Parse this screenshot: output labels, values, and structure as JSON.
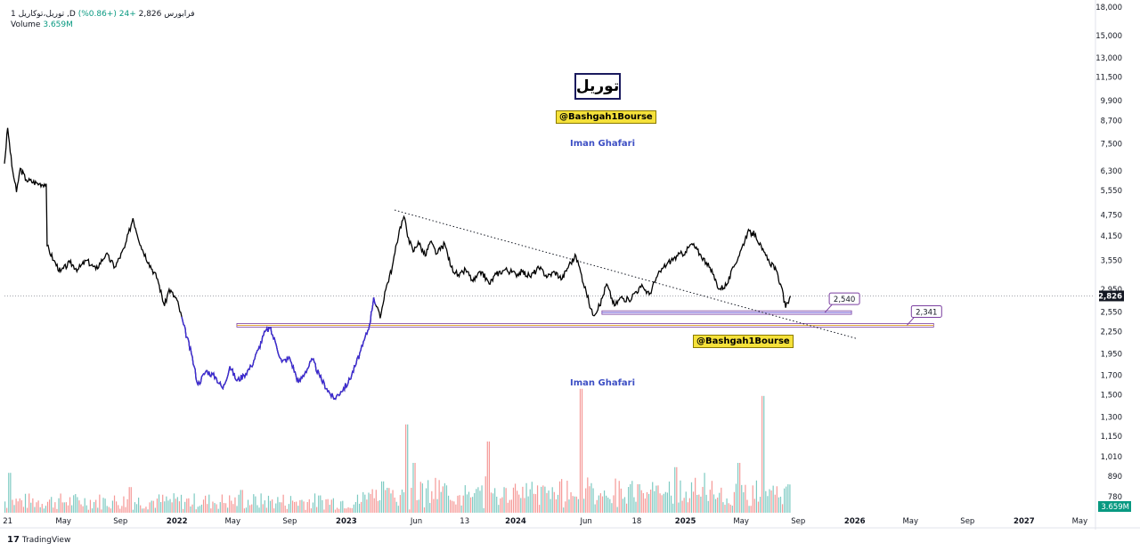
{
  "legend": {
    "symbol_line": "1 توریل،توکاریل ,D  فرابورس",
    "price": "2,826",
    "change": "+24 (+0.86%)",
    "volume_label": "Volume",
    "volume_value": "3.659M"
  },
  "overlay": {
    "title": "توریل",
    "tag1": "@Bashgah1Bourse",
    "tag2": "@Bashgah1Bourse",
    "author1": "Iman Ghafari",
    "author2": "Iman Ghafari"
  },
  "footer": {
    "brand": "TradingView"
  },
  "colors": {
    "price_line": "#000000",
    "highlight_line": "#3d2bd4",
    "vol_up": "#26a69a",
    "vol_down": "#ef5350",
    "support": "#7b3fa0",
    "grid": "#f0f3fa",
    "axis_text": "#131722"
  },
  "chart_data": {
    "type": "line",
    "title": "",
    "scale": "log",
    "ylim": [
      700,
      18000
    ],
    "y_ticks": [
      18000,
      15000,
      13000,
      11500,
      9900,
      8700,
      7500,
      6300,
      5550,
      4750,
      4150,
      3550,
      2950,
      2550,
      2250,
      1950,
      1700,
      1500,
      1300,
      1150,
      1010,
      890,
      780
    ],
    "y_tick_labels": [
      "18,000",
      "15,000",
      "13,000",
      "11,500",
      "9,900",
      "8,700",
      "7,500",
      "6,300",
      "5,550",
      "4,750",
      "4,150",
      "3,550",
      "2,950",
      "2,550",
      "2,250",
      "1,950",
      "1,700",
      "1,500",
      "1,300",
      "1,150",
      "1,010",
      "890",
      "780"
    ],
    "x_ticks": [
      "2021-01",
      "2021-05",
      "2021-09",
      "2022-01",
      "2022-05",
      "2022-09",
      "2023-01",
      "2023-06",
      "2023-09-13",
      "2024-01",
      "2024-06",
      "2024-09-18",
      "2025-01",
      "2025-05",
      "2025-09",
      "2026-01",
      "2026-05",
      "2026-09",
      "2027-01",
      "2027-05"
    ],
    "x_tick_labels": [
      "21",
      "May",
      "Sep",
      "2022",
      "May",
      "Sep",
      "2023",
      "Jun",
      "13",
      "2024",
      "Jun",
      "18",
      "2025",
      "May",
      "Sep",
      "2026",
      "May",
      "Sep",
      "2027",
      "May"
    ],
    "x_range": [
      "2020-12-25",
      "2027-05-31"
    ],
    "series": [
      {
        "points": [
          [
            "2020-12-25",
            6600
          ],
          [
            "2021-01-01",
            8300
          ],
          [
            "2021-01-10",
            6500
          ],
          [
            "2021-01-20",
            5500
          ],
          [
            "2021-01-28",
            6400
          ],
          [
            "2021-02-10",
            5950
          ],
          [
            "2021-03-10",
            5800
          ],
          [
            "2021-03-25",
            5800
          ],
          [
            "2021-03-27",
            3900
          ],
          [
            "2021-04-10",
            3550
          ],
          [
            "2021-04-25",
            3300
          ],
          [
            "2021-05-15",
            3500
          ],
          [
            "2021-06-01",
            3350
          ],
          [
            "2021-06-20",
            3550
          ],
          [
            "2021-07-10",
            3350
          ],
          [
            "2021-08-01",
            3700
          ],
          [
            "2021-08-20",
            3400
          ],
          [
            "2021-09-10",
            3850
          ],
          [
            "2021-09-28",
            4650
          ],
          [
            "2021-10-15",
            3900
          ],
          [
            "2021-11-01",
            3500
          ],
          [
            "2021-11-20",
            3150
          ],
          [
            "2021-12-05",
            2650
          ],
          [
            "2021-12-15",
            2950
          ],
          [
            "2022-01-01",
            2750
          ],
          [
            "2022-01-15",
            2350
          ],
          [
            "2022-02-01",
            1950
          ],
          [
            "2022-02-15",
            1600
          ],
          [
            "2022-03-05",
            1750
          ],
          [
            "2022-03-25",
            1680
          ],
          [
            "2022-04-10",
            1560
          ],
          [
            "2022-04-25",
            1800
          ],
          [
            "2022-05-10",
            1640
          ],
          [
            "2022-05-25",
            1700
          ],
          [
            "2022-06-10",
            1800
          ],
          [
            "2022-06-25",
            2000
          ],
          [
            "2022-07-10",
            2250
          ],
          [
            "2022-07-20",
            2300
          ],
          [
            "2022-08-01",
            2100
          ],
          [
            "2022-08-15",
            1850
          ],
          [
            "2022-09-01",
            1900
          ],
          [
            "2022-09-20",
            1620
          ],
          [
            "2022-10-05",
            1740
          ],
          [
            "2022-10-20",
            1880
          ],
          [
            "2022-11-05",
            1680
          ],
          [
            "2022-11-20",
            1560
          ],
          [
            "2022-12-05",
            1460
          ],
          [
            "2022-12-20",
            1530
          ],
          [
            "2023-01-05",
            1620
          ],
          [
            "2023-01-20",
            1800
          ],
          [
            "2023-02-05",
            2050
          ],
          [
            "2023-02-20",
            2350
          ],
          [
            "2023-03-01",
            2800
          ],
          [
            "2023-03-15",
            2450
          ],
          [
            "2023-03-25",
            2900
          ],
          [
            "2023-04-10",
            3400
          ],
          [
            "2023-04-25",
            4300
          ],
          [
            "2023-05-05",
            4700
          ],
          [
            "2023-05-15",
            4100
          ],
          [
            "2023-05-25",
            3750
          ],
          [
            "2023-06-05",
            4000
          ],
          [
            "2023-06-20",
            3650
          ],
          [
            "2023-07-01",
            4000
          ],
          [
            "2023-07-15",
            3700
          ],
          [
            "2023-08-01",
            3950
          ],
          [
            "2023-08-15",
            3400
          ],
          [
            "2023-09-01",
            3200
          ],
          [
            "2023-09-15",
            3350
          ],
          [
            "2023-10-01",
            3100
          ],
          [
            "2023-10-20",
            3300
          ],
          [
            "2023-11-05",
            3050
          ],
          [
            "2023-11-20",
            3250
          ],
          [
            "2023-12-10",
            3350
          ],
          [
            "2024-01-01",
            3250
          ],
          [
            "2024-01-15",
            3300
          ],
          [
            "2024-02-01",
            3200
          ],
          [
            "2024-02-20",
            3380
          ],
          [
            "2024-03-10",
            3200
          ],
          [
            "2024-03-25",
            3300
          ],
          [
            "2024-04-10",
            3150
          ],
          [
            "2024-04-25",
            3450
          ],
          [
            "2024-05-10",
            3650
          ],
          [
            "2024-05-20",
            3300
          ],
          [
            "2024-06-01",
            2900
          ],
          [
            "2024-06-15",
            2500
          ],
          [
            "2024-06-30",
            2650
          ],
          [
            "2024-07-15",
            3050
          ],
          [
            "2024-08-01",
            2650
          ],
          [
            "2024-08-15",
            2800
          ],
          [
            "2024-09-01",
            2750
          ],
          [
            "2024-09-15",
            2900
          ],
          [
            "2024-10-01",
            3000
          ],
          [
            "2024-10-15",
            2850
          ],
          [
            "2024-11-01",
            3200
          ],
          [
            "2024-11-15",
            3400
          ],
          [
            "2024-12-01",
            3550
          ],
          [
            "2024-12-15",
            3650
          ],
          [
            "2025-01-01",
            3750
          ],
          [
            "2025-01-15",
            3950
          ],
          [
            "2025-02-01",
            3700
          ],
          [
            "2025-02-15",
            3500
          ],
          [
            "2025-03-01",
            3250
          ],
          [
            "2025-03-15",
            2950
          ],
          [
            "2025-04-01",
            3050
          ],
          [
            "2025-04-15",
            3400
          ],
          [
            "2025-05-01",
            3800
          ],
          [
            "2025-05-15",
            4250
          ],
          [
            "2025-06-01",
            4200
          ],
          [
            "2025-06-15",
            3800
          ],
          [
            "2025-07-01",
            3500
          ],
          [
            "2025-07-10",
            3450
          ],
          [
            "2025-07-25",
            3050
          ],
          [
            "2025-08-05",
            2620
          ],
          [
            "2025-08-15",
            2826
          ]
        ]
      }
    ],
    "current_price": 2826,
    "current_price_label": "2,826",
    "volume_last_label": "3.659M",
    "trendline": {
      "from": [
        "2023-04-15",
        4900
      ],
      "to": [
        "2026-01-05",
        2150
      ],
      "style": "dotted"
    },
    "levels": [
      {
        "value": 2540,
        "label": "2,540",
        "from": "2024-07-05",
        "to": "2025-12-25"
      },
      {
        "value": 2341,
        "label": "2,341",
        "from": "2022-05-10",
        "to": "2026-06-20"
      }
    ],
    "volume": {
      "start": "2020-12-25",
      "end": "2025-08-15",
      "spikes": [
        [
          "2021-01-05",
          0.28
        ],
        [
          "2021-09-20",
          0.18
        ],
        [
          "2022-05-20",
          0.16
        ],
        [
          "2023-03-20",
          0.22
        ],
        [
          "2023-05-10",
          0.62
        ],
        [
          "2023-05-25",
          0.35
        ],
        [
          "2023-11-01",
          0.5
        ],
        [
          "2024-05-20",
          0.87
        ],
        [
          "2024-09-20",
          0.2
        ],
        [
          "2024-12-10",
          0.32
        ],
        [
          "2025-02-10",
          0.28
        ],
        [
          "2025-04-25",
          0.35
        ],
        [
          "2025-06-15",
          0.82
        ]
      ]
    }
  }
}
